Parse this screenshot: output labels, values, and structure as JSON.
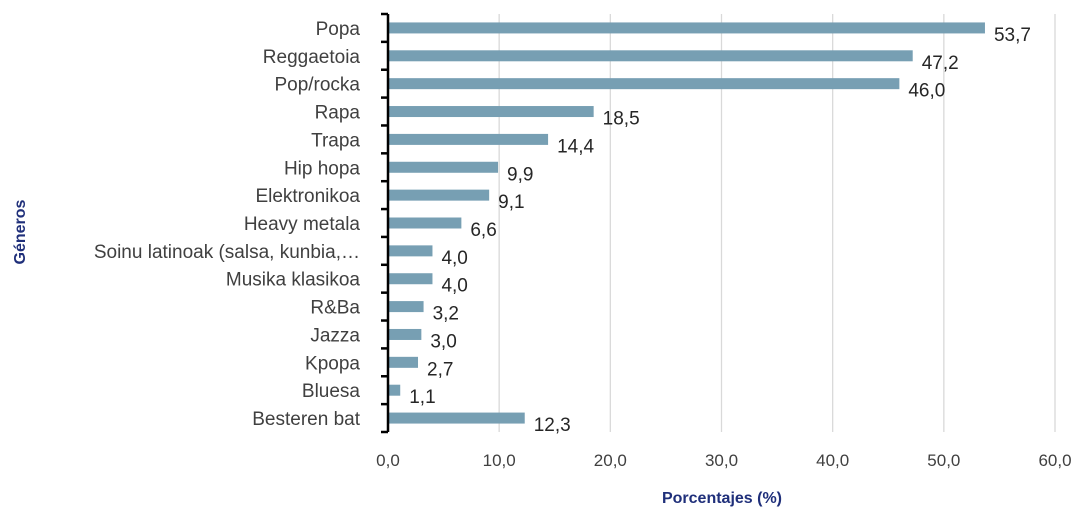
{
  "chart_data": {
    "type": "bar",
    "orientation": "horizontal",
    "categories": [
      "Popa",
      "Reggaetoia",
      "Pop/rocka",
      "Rapa",
      "Trapa",
      "Hip hopa",
      "Elektronikoa",
      "Heavy metala",
      "Soinu latinoak (salsa, kunbia,…",
      "Musika klasikoa",
      "R&Ba",
      "Jazza",
      "Kpopa",
      "Bluesa",
      "Besteren bat"
    ],
    "values": [
      53.7,
      47.2,
      46.0,
      18.5,
      14.4,
      9.9,
      9.1,
      6.6,
      4.0,
      4.0,
      3.2,
      3.0,
      2.7,
      1.1,
      12.3
    ],
    "value_labels": [
      "53,7",
      "47,2",
      "46,0",
      "18,5",
      "14,4",
      "9,9",
      "9,1",
      "6,6",
      "4,0",
      "4,0",
      "3,2",
      "3,0",
      "2,7",
      "1,1",
      "12,3"
    ],
    "x_ticks": [
      0,
      10,
      20,
      30,
      40,
      50,
      60
    ],
    "x_tick_labels": [
      "0,0",
      "10,0",
      "20,0",
      "30,0",
      "40,0",
      "50,0",
      "60,0"
    ],
    "xlim": [
      0,
      60
    ],
    "xlabel": "Porcentajes (%)",
    "ylabel": "Géneros",
    "grid": "vertical",
    "legend": "none",
    "colors": {
      "bar": "#779fb3",
      "grid": "#d9d9d9",
      "axis": "#000000",
      "axis_title": "#1f2f7a"
    }
  }
}
